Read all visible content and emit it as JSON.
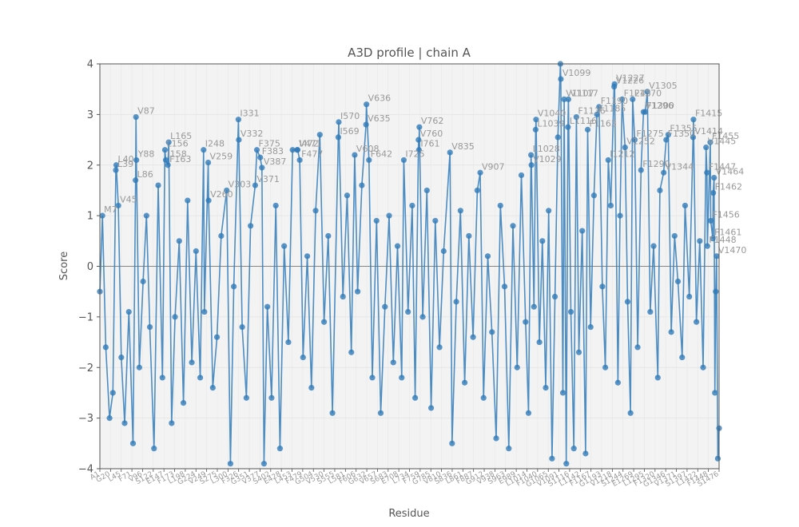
{
  "chart_data": {
    "type": "line",
    "title": "A3D profile | chain A",
    "xlabel": "Residue",
    "ylabel": "Score",
    "ylim": [
      -4,
      4
    ],
    "y_ticks": [
      "−4",
      "−3",
      "−2",
      "−1",
      "0",
      "1",
      "2",
      "3",
      "4"
    ],
    "grid": true,
    "series_color": "#2f7ab8",
    "series": [
      {
        "points": [
          {
            "x": 1,
            "y": -0.5
          },
          {
            "x": 7,
            "y": 1.0,
            "label": "M7"
          },
          {
            "x": 15,
            "y": -1.6
          },
          {
            "x": 24,
            "y": -3.0
          },
          {
            "x": 32,
            "y": -2.5
          },
          {
            "x": 39,
            "y": 1.9,
            "label": "L39"
          },
          {
            "x": 40,
            "y": 2.0,
            "label": "L40"
          },
          {
            "x": 45,
            "y": 1.2,
            "label": "V45"
          },
          {
            "x": 52,
            "y": -1.8
          },
          {
            "x": 60,
            "y": -3.1
          },
          {
            "x": 70,
            "y": -0.9
          },
          {
            "x": 80,
            "y": -3.5
          },
          {
            "x": 86,
            "y": 1.7,
            "label": "L86"
          },
          {
            "x": 87,
            "y": 2.95,
            "label": "V87"
          },
          {
            "x": 88,
            "y": 2.1,
            "label": "Y88"
          },
          {
            "x": 95,
            "y": -2.0
          },
          {
            "x": 104,
            "y": -0.3
          },
          {
            "x": 112,
            "y": 1.0
          },
          {
            "x": 120,
            "y": -1.2
          },
          {
            "x": 130,
            "y": -3.6
          },
          {
            "x": 140,
            "y": 1.6
          },
          {
            "x": 150,
            "y": -2.2
          },
          {
            "x": 156,
            "y": 2.3,
            "label": "L156"
          },
          {
            "x": 158,
            "y": 2.1,
            "label": "I158"
          },
          {
            "x": 163,
            "y": 2.0,
            "label": "F163"
          },
          {
            "x": 165,
            "y": 2.45,
            "label": "L165"
          },
          {
            "x": 172,
            "y": -3.1
          },
          {
            "x": 180,
            "y": -1.0
          },
          {
            "x": 190,
            "y": 0.5
          },
          {
            "x": 200,
            "y": -2.7
          },
          {
            "x": 210,
            "y": 1.3
          },
          {
            "x": 220,
            "y": -1.9
          },
          {
            "x": 230,
            "y": 0.3
          },
          {
            "x": 240,
            "y": -2.2
          },
          {
            "x": 248,
            "y": 2.3,
            "label": "I248"
          },
          {
            "x": 250,
            "y": -0.9
          },
          {
            "x": 259,
            "y": 2.05,
            "label": "V259"
          },
          {
            "x": 260,
            "y": 1.3,
            "label": "V260"
          },
          {
            "x": 270,
            "y": -2.4
          },
          {
            "x": 280,
            "y": -1.4
          },
          {
            "x": 290,
            "y": 0.6
          },
          {
            "x": 303,
            "y": 1.5,
            "label": "V303"
          },
          {
            "x": 312,
            "y": -3.9
          },
          {
            "x": 320,
            "y": -0.4
          },
          {
            "x": 331,
            "y": 2.9,
            "label": "I331"
          },
          {
            "x": 332,
            "y": 2.5,
            "label": "V332"
          },
          {
            "x": 340,
            "y": -1.2
          },
          {
            "x": 350,
            "y": -2.6
          },
          {
            "x": 360,
            "y": 0.8
          },
          {
            "x": 371,
            "y": 1.6,
            "label": "V371"
          },
          {
            "x": 375,
            "y": 2.3,
            "label": "F375"
          },
          {
            "x": 383,
            "y": 2.15,
            "label": "F383"
          },
          {
            "x": 387,
            "y": 1.95,
            "label": "V387"
          },
          {
            "x": 392,
            "y": -3.9
          },
          {
            "x": 400,
            "y": -0.8
          },
          {
            "x": 410,
            "y": -2.6
          },
          {
            "x": 420,
            "y": 1.2
          },
          {
            "x": 430,
            "y": -3.6
          },
          {
            "x": 440,
            "y": 0.4
          },
          {
            "x": 450,
            "y": -1.5
          },
          {
            "x": 460,
            "y": 2.3
          },
          {
            "x": 471,
            "y": 2.3,
            "label": "V471"
          },
          {
            "x": 472,
            "y": 2.3,
            "label": "I472"
          },
          {
            "x": 477,
            "y": 2.1,
            "label": "F477"
          },
          {
            "x": 485,
            "y": -1.8
          },
          {
            "x": 495,
            "y": 0.2
          },
          {
            "x": 505,
            "y": -2.4
          },
          {
            "x": 515,
            "y": 1.1
          },
          {
            "x": 525,
            "y": 2.6
          },
          {
            "x": 535,
            "y": -1.1
          },
          {
            "x": 545,
            "y": 0.6
          },
          {
            "x": 555,
            "y": -2.9
          },
          {
            "x": 569,
            "y": 2.55,
            "label": "I569"
          },
          {
            "x": 570,
            "y": 2.85,
            "label": "I570"
          },
          {
            "x": 580,
            "y": -0.6
          },
          {
            "x": 590,
            "y": 1.4
          },
          {
            "x": 600,
            "y": -1.7
          },
          {
            "x": 608,
            "y": 2.2,
            "label": "V608"
          },
          {
            "x": 615,
            "y": -0.5
          },
          {
            "x": 625,
            "y": 1.6
          },
          {
            "x": 635,
            "y": 2.8,
            "label": "V635"
          },
          {
            "x": 636,
            "y": 3.2,
            "label": "V636"
          },
          {
            "x": 642,
            "y": 2.1,
            "label": "F642"
          },
          {
            "x": 650,
            "y": -2.2
          },
          {
            "x": 660,
            "y": 0.9
          },
          {
            "x": 670,
            "y": -2.9
          },
          {
            "x": 680,
            "y": -0.8
          },
          {
            "x": 690,
            "y": 1.0
          },
          {
            "x": 700,
            "y": -1.9
          },
          {
            "x": 710,
            "y": 0.4
          },
          {
            "x": 720,
            "y": -2.2
          },
          {
            "x": 725,
            "y": 2.1,
            "label": "I725"
          },
          {
            "x": 735,
            "y": -0.9
          },
          {
            "x": 745,
            "y": 1.2
          },
          {
            "x": 752,
            "y": -2.6
          },
          {
            "x": 760,
            "y": 2.5,
            "label": "V760"
          },
          {
            "x": 761,
            "y": 2.3,
            "label": "I761"
          },
          {
            "x": 762,
            "y": 2.75,
            "label": "V762"
          },
          {
            "x": 770,
            "y": -1.0
          },
          {
            "x": 780,
            "y": 1.5
          },
          {
            "x": 790,
            "y": -2.8
          },
          {
            "x": 800,
            "y": 0.9
          },
          {
            "x": 810,
            "y": -1.6
          },
          {
            "x": 820,
            "y": 0.3
          },
          {
            "x": 835,
            "y": 2.25,
            "label": "V835"
          },
          {
            "x": 840,
            "y": -3.5
          },
          {
            "x": 850,
            "y": -0.7
          },
          {
            "x": 860,
            "y": 1.1
          },
          {
            "x": 870,
            "y": -2.3
          },
          {
            "x": 880,
            "y": 0.6
          },
          {
            "x": 890,
            "y": -1.4
          },
          {
            "x": 900,
            "y": 1.5
          },
          {
            "x": 907,
            "y": 1.85,
            "label": "V907"
          },
          {
            "x": 915,
            "y": -2.6
          },
          {
            "x": 925,
            "y": 0.2
          },
          {
            "x": 935,
            "y": -1.3
          },
          {
            "x": 945,
            "y": -3.4
          },
          {
            "x": 955,
            "y": 1.2
          },
          {
            "x": 965,
            "y": -0.4
          },
          {
            "x": 975,
            "y": -3.6
          },
          {
            "x": 985,
            "y": 0.8
          },
          {
            "x": 995,
            "y": -2.0
          },
          {
            "x": 1005,
            "y": 1.8
          },
          {
            "x": 1015,
            "y": -1.1
          },
          {
            "x": 1022,
            "y": -2.9
          },
          {
            "x": 1028,
            "y": 2.2,
            "label": "L1028"
          },
          {
            "x": 1029,
            "y": 2.0,
            "label": "V1029"
          },
          {
            "x": 1035,
            "y": -0.8
          },
          {
            "x": 1039,
            "y": 2.7,
            "label": "L1039"
          },
          {
            "x": 1040,
            "y": 2.9,
            "label": "V1040"
          },
          {
            "x": 1048,
            "y": -1.5
          },
          {
            "x": 1055,
            "y": 0.5
          },
          {
            "x": 1063,
            "y": -2.4
          },
          {
            "x": 1070,
            "y": 1.1
          },
          {
            "x": 1078,
            "y": -3.8
          },
          {
            "x": 1085,
            "y": -0.6
          },
          {
            "x": 1092,
            "y": 2.55
          },
          {
            "x": 1098,
            "y": 4.0
          },
          {
            "x": 1099,
            "y": 3.7,
            "label": "V1099"
          },
          {
            "x": 1104,
            "y": -2.5
          },
          {
            "x": 1107,
            "y": 3.3,
            "label": "V1107"
          },
          {
            "x": 1112,
            "y": -3.9
          },
          {
            "x": 1116,
            "y": 2.75,
            "label": "L1116"
          },
          {
            "x": 1117,
            "y": 3.3,
            "label": "V1117"
          },
          {
            "x": 1123,
            "y": -0.9
          },
          {
            "x": 1130,
            "y": -3.6
          },
          {
            "x": 1136,
            "y": 2.95,
            "label": "F1136"
          },
          {
            "x": 1142,
            "y": -1.7
          },
          {
            "x": 1150,
            "y": 0.7
          },
          {
            "x": 1158,
            "y": -3.7
          },
          {
            "x": 1163,
            "y": 2.7,
            "label": "F1163"
          },
          {
            "x": 1170,
            "y": -1.2
          },
          {
            "x": 1178,
            "y": 1.4
          },
          {
            "x": 1185,
            "y": 3.0,
            "label": "F1185"
          },
          {
            "x": 1190,
            "y": 3.15,
            "label": "F1190"
          },
          {
            "x": 1198,
            "y": -0.4
          },
          {
            "x": 1205,
            "y": -2.0
          },
          {
            "x": 1212,
            "y": 2.1,
            "label": "I1212"
          },
          {
            "x": 1218,
            "y": 1.2
          },
          {
            "x": 1226,
            "y": 3.55,
            "label": "V1226"
          },
          {
            "x": 1227,
            "y": 3.6,
            "label": "V1227"
          },
          {
            "x": 1235,
            "y": -2.3
          },
          {
            "x": 1240,
            "y": 1.0
          },
          {
            "x": 1245,
            "y": 3.3,
            "label": "F1245"
          },
          {
            "x": 1252,
            "y": 2.35,
            "label": "V1252"
          },
          {
            "x": 1258,
            "y": -0.7
          },
          {
            "x": 1265,
            "y": -2.9
          },
          {
            "x": 1270,
            "y": 3.3,
            "label": "F1270"
          },
          {
            "x": 1275,
            "y": 2.5,
            "label": "F1275"
          },
          {
            "x": 1282,
            "y": -1.6
          },
          {
            "x": 1290,
            "y": 1.9,
            "label": "F1290"
          },
          {
            "x": 1296,
            "y": 3.05,
            "label": "V1296"
          },
          {
            "x": 1300,
            "y": 3.05,
            "label": "F1300"
          },
          {
            "x": 1305,
            "y": 3.45,
            "label": "V1305"
          },
          {
            "x": 1312,
            "y": -0.9
          },
          {
            "x": 1320,
            "y": 0.4
          },
          {
            "x": 1330,
            "y": -2.2
          },
          {
            "x": 1335,
            "y": 1.5
          },
          {
            "x": 1344,
            "y": 1.85,
            "label": "V1344"
          },
          {
            "x": 1350,
            "y": 2.5,
            "label": "F1350"
          },
          {
            "x": 1355,
            "y": 2.6,
            "label": "F1355"
          },
          {
            "x": 1362,
            "y": -1.3
          },
          {
            "x": 1370,
            "y": 0.6
          },
          {
            "x": 1378,
            "y": -0.3
          },
          {
            "x": 1388,
            "y": -1.8
          },
          {
            "x": 1395,
            "y": 1.2
          },
          {
            "x": 1405,
            "y": -0.6
          },
          {
            "x": 1414,
            "y": 2.55,
            "label": "V1414"
          },
          {
            "x": 1415,
            "y": 2.9,
            "label": "F1415"
          },
          {
            "x": 1422,
            "y": -1.1
          },
          {
            "x": 1430,
            "y": 0.5
          },
          {
            "x": 1438,
            "y": -2.0
          },
          {
            "x": 1445,
            "y": 2.35,
            "label": "V1445"
          },
          {
            "x": 1447,
            "y": 1.85,
            "label": "F1447"
          },
          {
            "x": 1448,
            "y": 0.4,
            "label": "F1448"
          },
          {
            "x": 1455,
            "y": 2.45,
            "label": "F1455"
          },
          {
            "x": 1456,
            "y": 0.9,
            "label": "F1456"
          },
          {
            "x": 1461,
            "y": 0.55,
            "label": "F1461"
          },
          {
            "x": 1462,
            "y": 1.45,
            "label": "F1462"
          },
          {
            "x": 1464,
            "y": 1.75,
            "label": "V1464"
          },
          {
            "x": 1466,
            "y": -2.5
          },
          {
            "x": 1468,
            "y": -0.5
          },
          {
            "x": 1470,
            "y": 0.2,
            "label": "V1470"
          },
          {
            "x": 1473,
            "y": -3.8
          },
          {
            "x": 1476,
            "y": -3.2
          }
        ]
      }
    ],
    "x_tick_labels": [
      "A1",
      "G20",
      "L45",
      "F71",
      "V96",
      "S122",
      "E147",
      "F173",
      "L198",
      "G224",
      "V249",
      "S275",
      "L300",
      "F326",
      "G351",
      "V377",
      "S402",
      "E428",
      "L453",
      "F479",
      "G504",
      "V530",
      "S555",
      "L581",
      "F606",
      "G632",
      "V657",
      "S683",
      "E708",
      "L734",
      "F759",
      "G785",
      "V810",
      "S836",
      "L861",
      "F887",
      "G912",
      "V938",
      "S963",
      "E989",
      "L1014",
      "F1040",
      "G1065",
      "V1091",
      "S1116",
      "L1142",
      "F1167",
      "G1193",
      "V1218",
      "S1244",
      "E1269",
      "L1295",
      "F1320",
      "G1346",
      "V1371",
      "S1397",
      "L1422",
      "F1448",
      "S1476"
    ]
  }
}
